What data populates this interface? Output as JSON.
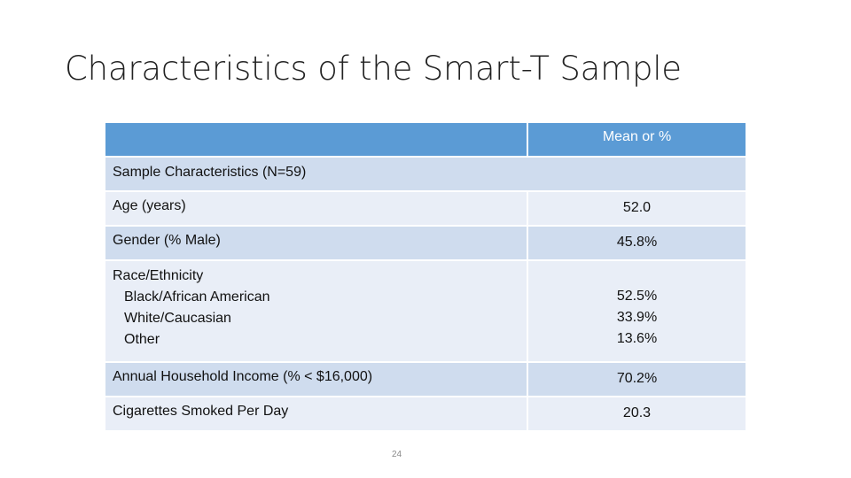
{
  "slide": {
    "title": "Characteristics of the Smart-T Sample",
    "page_number": "24"
  },
  "table": {
    "header": {
      "col1": "",
      "col2": "Mean or %"
    },
    "section_label": "Sample Characteristics (N=59)",
    "rows": [
      {
        "label": "Age (years)",
        "value": "52.0"
      },
      {
        "label": "Gender (% Male)",
        "value": "45.8%"
      },
      {
        "label": "Race/Ethnicity",
        "sub_labels": [
          "Black/African American",
          "White/Caucasian",
          "Other"
        ],
        "values": [
          "52.5%",
          "33.9%",
          "13.6%"
        ]
      },
      {
        "label": "Annual Household Income (% < $16,000)",
        "value": "70.2%"
      },
      {
        "label": "Cigarettes Smoked Per Day",
        "value": "20.3"
      }
    ]
  },
  "colors": {
    "header_bg": "#5b9bd5",
    "row_dark": "#cfdcee",
    "row_light": "#e9eef7"
  }
}
